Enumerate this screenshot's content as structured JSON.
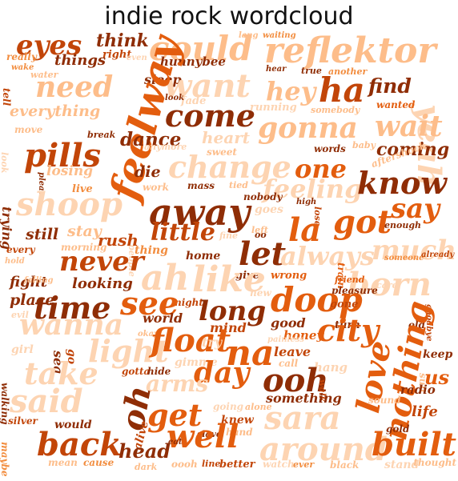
{
  "title": "indie rock wordcloud",
  "words": [
    "eyes",
    "think",
    "could",
    "lang",
    "waiting",
    "reflektor",
    "really",
    "things",
    "right",
    "even",
    "hunnybee",
    "wake",
    "water",
    "need",
    "sleep",
    "want",
    "hey",
    "hear",
    "true",
    "another",
    "ha",
    "find",
    "yeah",
    "tell",
    "fade",
    "look",
    "running",
    "somebody",
    "wanted",
    "everything",
    "feelway",
    "come",
    "wait",
    "move",
    "break",
    "dance",
    "gonna",
    "heart",
    "pills",
    "anymore",
    "sweet",
    "words",
    "baby",
    "coming",
    "look",
    "change",
    "one",
    "aftershock",
    "losing",
    "die",
    "please",
    "feeling",
    "know",
    "live",
    "work",
    "mass",
    "tied",
    "nobody",
    "trying",
    "shoop",
    "away",
    "say",
    "high",
    "got",
    "lose",
    "still",
    "stay",
    "people",
    "little",
    "la",
    "enough",
    "every",
    "rush",
    "goes",
    "let",
    "much",
    "hold",
    "morning",
    "thing",
    "fine",
    "left",
    "oo",
    "always",
    "train",
    "someone",
    "already",
    "never",
    "home",
    "fight",
    "give",
    "wrong",
    "born",
    "falling",
    "looking",
    "ah",
    "like",
    "friend",
    "care",
    "place",
    "new",
    "night",
    "pleasure",
    "evil",
    "see",
    "doop",
    "time",
    "long",
    "gone",
    "goodbye",
    "world",
    "okay",
    "good",
    "turn",
    "old",
    "wanna",
    "mind",
    "honey",
    "painless",
    "light",
    "city",
    "girl",
    "sea",
    "go",
    "float",
    "try",
    "na",
    "leave",
    "keep",
    "gimme",
    "walking",
    "take",
    "gotta",
    "hide",
    "day",
    "call",
    "nothing",
    "hang",
    "us",
    "sun",
    "ooh",
    "walk",
    "arms",
    "radio",
    "said",
    "something",
    "oh",
    "love",
    "sound",
    "silver",
    "would",
    "get",
    "alone",
    "sara",
    "life",
    "maybe",
    "gold",
    "alive",
    "going",
    "knew",
    "slave",
    "hand",
    "well",
    "back",
    "eat",
    "around",
    "built",
    "head",
    "mean",
    "cause",
    "dark",
    "oooh",
    "line",
    "better",
    "watch",
    "ever",
    "black",
    "stand",
    "thought"
  ]
}
